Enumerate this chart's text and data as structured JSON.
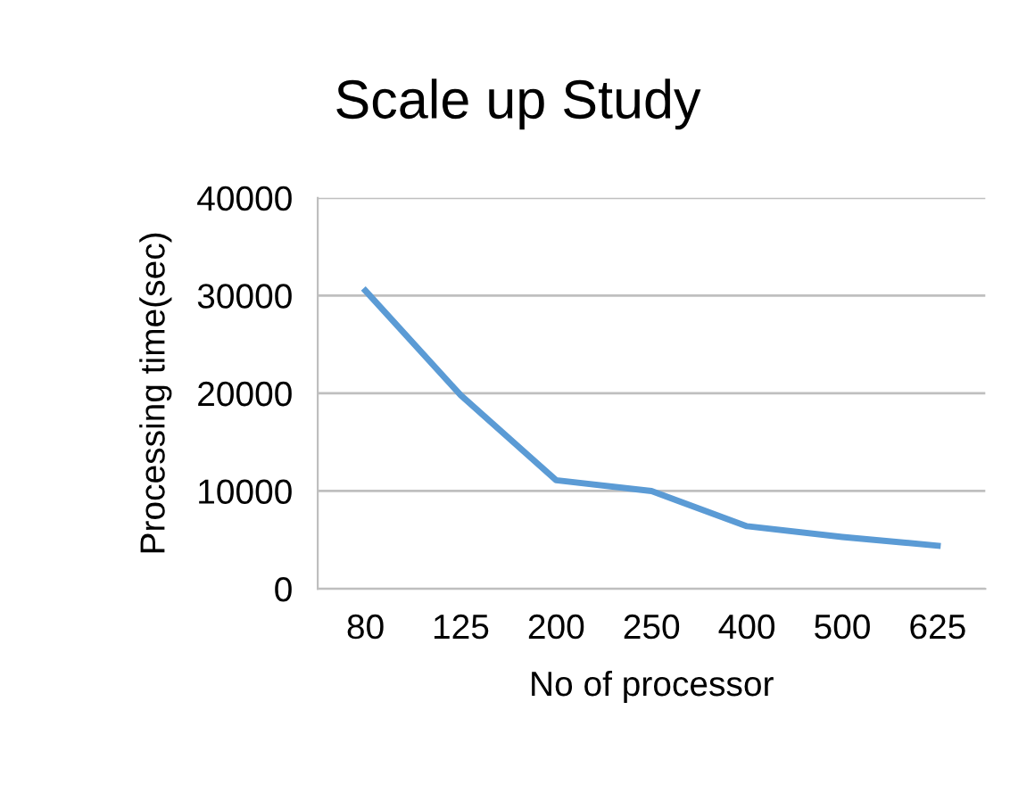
{
  "chart_data": {
    "type": "line",
    "title": "Scale up Study",
    "xlabel": "No of processor",
    "ylabel": "Processing time(sec)",
    "categories": [
      "80",
      "125",
      "200",
      "250",
      "400",
      "500",
      "625"
    ],
    "series": [
      {
        "color": "#5b9bd5",
        "values": [
          30500,
          19800,
          11100,
          10000,
          6400,
          5300,
          4400
        ]
      }
    ],
    "ylim": [
      0,
      40000
    ],
    "yticks": [
      0,
      10000,
      20000,
      30000,
      40000
    ],
    "grid": "y",
    "legend": false,
    "marker": "none",
    "line_style": "solid"
  }
}
